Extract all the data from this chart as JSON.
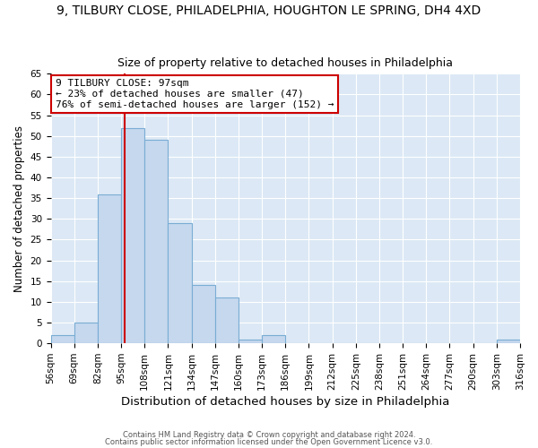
{
  "title": "9, TILBURY CLOSE, PHILADELPHIA, HOUGHTON LE SPRING, DH4 4XD",
  "subtitle": "Size of property relative to detached houses in Philadelphia",
  "xlabel": "Distribution of detached houses by size in Philadelphia",
  "ylabel": "Number of detached properties",
  "bin_edges": [
    56,
    69,
    82,
    95,
    108,
    121,
    134,
    147,
    160,
    173,
    186,
    199,
    212,
    225,
    238,
    251,
    264,
    277,
    290,
    303,
    316
  ],
  "bin_labels": [
    "56sqm",
    "69sqm",
    "82sqm",
    "95sqm",
    "108sqm",
    "121sqm",
    "134sqm",
    "147sqm",
    "160sqm",
    "173sqm",
    "186sqm",
    "199sqm",
    "212sqm",
    "225sqm",
    "238sqm",
    "251sqm",
    "264sqm",
    "277sqm",
    "290sqm",
    "303sqm",
    "316sqm"
  ],
  "counts": [
    2,
    5,
    36,
    52,
    49,
    29,
    14,
    11,
    1,
    2,
    0,
    0,
    0,
    0,
    0,
    0,
    0,
    0,
    0,
    1
  ],
  "bar_color": "#c5d8ee",
  "bar_edgecolor": "#7aadd4",
  "vline_x": 97,
  "vline_color": "#cc0000",
  "ylim": [
    0,
    65
  ],
  "yticks": [
    0,
    5,
    10,
    15,
    20,
    25,
    30,
    35,
    40,
    45,
    50,
    55,
    60,
    65
  ],
  "annotation_text": "9 TILBURY CLOSE: 97sqm\n← 23% of detached houses are smaller (47)\n76% of semi-detached houses are larger (152) →",
  "annotation_box_edgecolor": "#cc0000",
  "annotation_box_facecolor": "#ffffff",
  "footer_line1": "Contains HM Land Registry data © Crown copyright and database right 2024.",
  "footer_line2": "Contains public sector information licensed under the Open Government Licence v3.0.",
  "fig_background_color": "#ffffff",
  "plot_background_color": "#dce8f5",
  "grid_color": "#ffffff",
  "title_fontsize": 10,
  "subtitle_fontsize": 9,
  "xlabel_fontsize": 9.5,
  "ylabel_fontsize": 8.5,
  "tick_fontsize": 7.5,
  "annotation_fontsize": 8,
  "footer_fontsize": 6
}
